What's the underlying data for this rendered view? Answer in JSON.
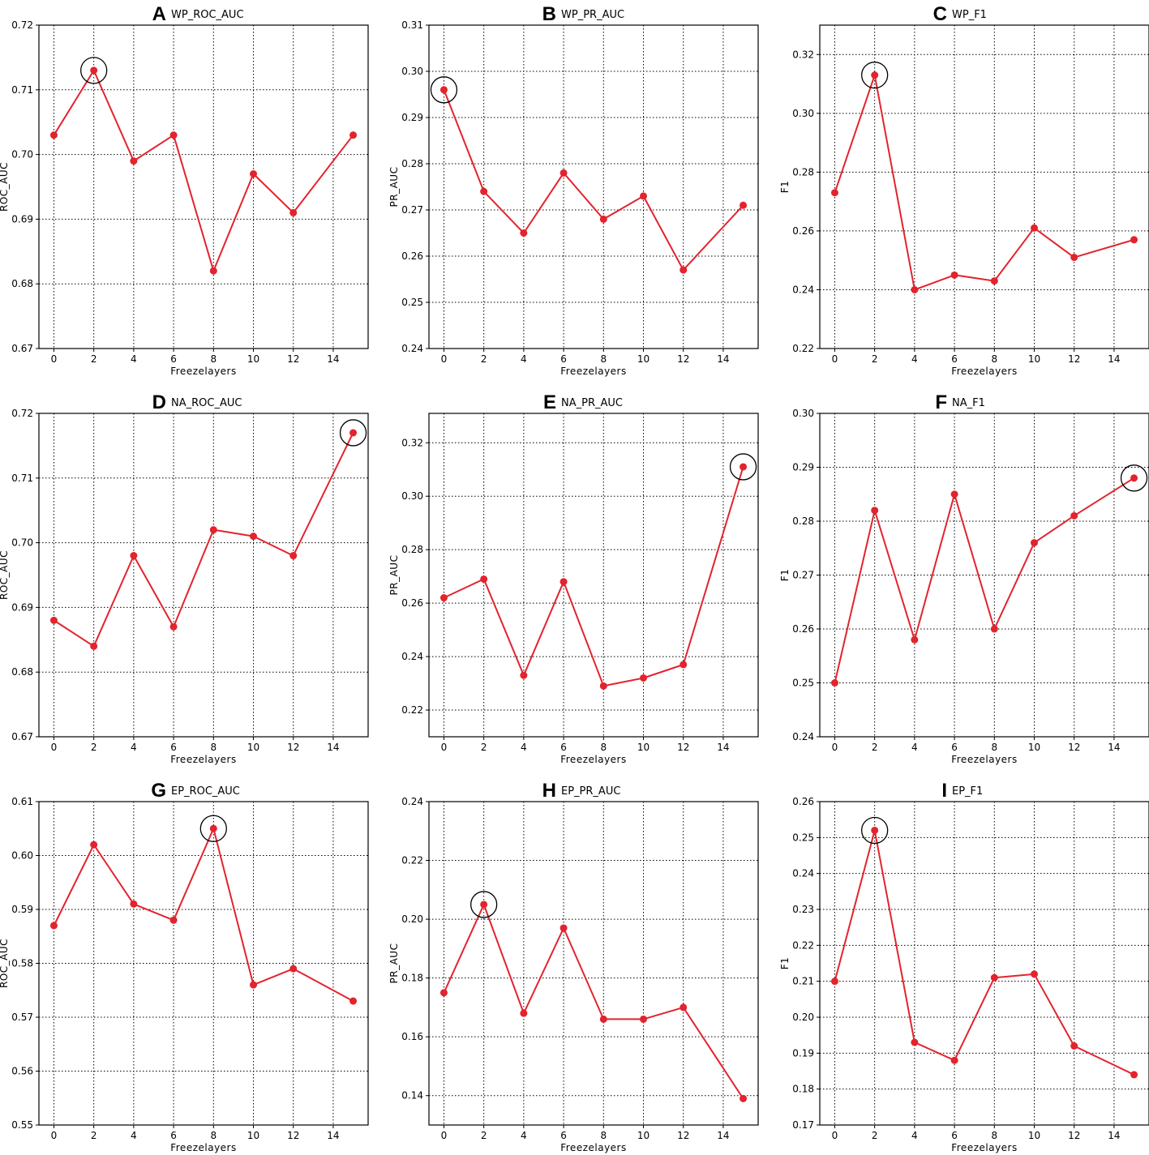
{
  "figure": {
    "line_color": "#e3232d",
    "highlight_color": "#000000",
    "grid": true,
    "grid_style": "dotted"
  },
  "chart_data": [
    {
      "type": "line",
      "letter": "A",
      "title": "WP_ROC_AUC",
      "xlabel": "Freezelayers",
      "ylabel": "ROC_AUC",
      "x": [
        0,
        2,
        4,
        6,
        8,
        10,
        12,
        15
      ],
      "y": [
        0.703,
        0.713,
        0.699,
        0.703,
        0.682,
        0.697,
        0.691,
        0.703
      ],
      "xticks": [
        0,
        2,
        4,
        6,
        8,
        10,
        12,
        14
      ],
      "xtick_labels": [
        "0",
        "2",
        "4",
        "6",
        "8",
        "10",
        "12",
        "14"
      ],
      "yticks": [
        0.67,
        0.68,
        0.69,
        0.7,
        0.71,
        0.72
      ],
      "ytick_labels": [
        "0.67",
        "0.68",
        "0.69",
        "0.70",
        "0.71",
        "0.72"
      ],
      "xlim": [
        -0.75,
        15.75
      ],
      "ylim": [
        0.67,
        0.72
      ],
      "highlight_x": 2
    },
    {
      "type": "line",
      "letter": "B",
      "title": "WP_PR_AUC",
      "xlabel": "Freezelayers",
      "ylabel": "PR_AUC",
      "x": [
        0,
        2,
        4,
        6,
        8,
        10,
        12,
        15
      ],
      "y": [
        0.296,
        0.274,
        0.265,
        0.278,
        0.268,
        0.273,
        0.257,
        0.271
      ],
      "xticks": [
        0,
        2,
        4,
        6,
        8,
        10,
        12,
        14
      ],
      "xtick_labels": [
        "0",
        "2",
        "4",
        "6",
        "8",
        "10",
        "12",
        "14"
      ],
      "yticks": [
        0.24,
        0.25,
        0.26,
        0.27,
        0.28,
        0.29,
        0.3,
        0.31
      ],
      "ytick_labels": [
        "0.24",
        "0.25",
        "0.26",
        "0.27",
        "0.28",
        "0.29",
        "0.30",
        "0.31"
      ],
      "xlim": [
        -0.75,
        15.75
      ],
      "ylim": [
        0.24,
        0.31
      ],
      "highlight_x": 0
    },
    {
      "type": "line",
      "letter": "C",
      "title": "WP_F1",
      "xlabel": "Freezelayers",
      "ylabel": "F1",
      "x": [
        0,
        2,
        4,
        6,
        8,
        10,
        12,
        15
      ],
      "y": [
        0.273,
        0.313,
        0.24,
        0.245,
        0.243,
        0.261,
        0.251,
        0.257
      ],
      "xticks": [
        0,
        2,
        4,
        6,
        8,
        10,
        12,
        14
      ],
      "xtick_labels": [
        "0",
        "2",
        "4",
        "6",
        "8",
        "10",
        "12",
        "14"
      ],
      "yticks": [
        0.22,
        0.24,
        0.26,
        0.28,
        0.3,
        0.32
      ],
      "ytick_labels": [
        "0.22",
        "0.24",
        "0.26",
        "0.28",
        "0.30",
        "0.32"
      ],
      "xlim": [
        -0.75,
        15.75
      ],
      "ylim": [
        0.22,
        0.33
      ],
      "highlight_x": 2
    },
    {
      "type": "line",
      "letter": "D",
      "title": "NA_ROC_AUC",
      "xlabel": "Freezelayers",
      "ylabel": "ROC_AUC",
      "x": [
        0,
        2,
        4,
        6,
        8,
        10,
        12,
        15
      ],
      "y": [
        0.688,
        0.684,
        0.698,
        0.687,
        0.702,
        0.701,
        0.698,
        0.717
      ],
      "xticks": [
        0,
        2,
        4,
        6,
        8,
        10,
        12,
        14
      ],
      "xtick_labels": [
        "0",
        "2",
        "4",
        "6",
        "8",
        "10",
        "12",
        "14"
      ],
      "yticks": [
        0.67,
        0.68,
        0.69,
        0.7,
        0.71,
        0.72
      ],
      "ytick_labels": [
        "0.67",
        "0.68",
        "0.69",
        "0.70",
        "0.71",
        "0.72"
      ],
      "xlim": [
        -0.75,
        15.75
      ],
      "ylim": [
        0.67,
        0.72
      ],
      "highlight_x": 15
    },
    {
      "type": "line",
      "letter": "E",
      "title": "NA_PR_AUC",
      "xlabel": "Freezelayers",
      "ylabel": "PR_AUC",
      "x": [
        0,
        2,
        4,
        6,
        8,
        10,
        12,
        15
      ],
      "y": [
        0.262,
        0.269,
        0.233,
        0.268,
        0.229,
        0.232,
        0.237,
        0.311
      ],
      "xticks": [
        0,
        2,
        4,
        6,
        8,
        10,
        12,
        14
      ],
      "xtick_labels": [
        "0",
        "2",
        "4",
        "6",
        "8",
        "10",
        "12",
        "14"
      ],
      "yticks": [
        0.22,
        0.24,
        0.26,
        0.28,
        0.3,
        0.32
      ],
      "ytick_labels": [
        "0.22",
        "0.24",
        "0.26",
        "0.28",
        "0.30",
        "0.32"
      ],
      "xlim": [
        -0.75,
        15.75
      ],
      "ylim": [
        0.21,
        0.331
      ],
      "highlight_x": 15
    },
    {
      "type": "line",
      "letter": "F",
      "title": "NA_F1",
      "xlabel": "Freezelayers",
      "ylabel": "F1",
      "x": [
        0,
        2,
        4,
        6,
        8,
        10,
        12,
        15
      ],
      "y": [
        0.25,
        0.282,
        0.258,
        0.285,
        0.26,
        0.276,
        0.281,
        0.288
      ],
      "xticks": [
        0,
        2,
        4,
        6,
        8,
        10,
        12,
        14
      ],
      "xtick_labels": [
        "0",
        "2",
        "4",
        "6",
        "8",
        "10",
        "12",
        "14"
      ],
      "yticks": [
        0.24,
        0.25,
        0.26,
        0.27,
        0.28,
        0.29,
        0.3
      ],
      "ytick_labels": [
        "0.24",
        "0.25",
        "0.26",
        "0.27",
        "0.28",
        "0.29",
        "0.30"
      ],
      "xlim": [
        -0.75,
        15.75
      ],
      "ylim": [
        0.24,
        0.3
      ],
      "highlight_x": 15
    },
    {
      "type": "line",
      "letter": "G",
      "title": "EP_ROC_AUC",
      "xlabel": "Freezelayers",
      "ylabel": "ROC_AUC",
      "x": [
        0,
        2,
        4,
        6,
        8,
        10,
        12,
        15
      ],
      "y": [
        0.587,
        0.602,
        0.591,
        0.588,
        0.605,
        0.576,
        0.579,
        0.573
      ],
      "xticks": [
        0,
        2,
        4,
        6,
        8,
        10,
        12,
        14
      ],
      "xtick_labels": [
        "0",
        "2",
        "4",
        "6",
        "8",
        "10",
        "12",
        "14"
      ],
      "yticks": [
        0.55,
        0.56,
        0.57,
        0.58,
        0.59,
        0.6,
        0.61
      ],
      "ytick_labels": [
        "0.55",
        "0.56",
        "0.57",
        "0.58",
        "0.59",
        "0.60",
        "0.61"
      ],
      "xlim": [
        -0.75,
        15.75
      ],
      "ylim": [
        0.55,
        0.61
      ],
      "highlight_x": 8
    },
    {
      "type": "line",
      "letter": "H",
      "title": "EP_PR_AUC",
      "xlabel": "Freezelayers",
      "ylabel": "PR_AUC",
      "x": [
        0,
        2,
        4,
        6,
        8,
        10,
        12,
        15
      ],
      "y": [
        0.175,
        0.205,
        0.168,
        0.197,
        0.166,
        0.166,
        0.17,
        0.139
      ],
      "xticks": [
        0,
        2,
        4,
        6,
        8,
        10,
        12,
        14
      ],
      "xtick_labels": [
        "0",
        "2",
        "4",
        "6",
        "8",
        "10",
        "12",
        "14"
      ],
      "yticks": [
        0.14,
        0.16,
        0.18,
        0.2,
        0.22,
        0.24
      ],
      "ytick_labels": [
        "0.14",
        "0.16",
        "0.18",
        "0.20",
        "0.22",
        "0.24"
      ],
      "xlim": [
        -0.75,
        15.75
      ],
      "ylim": [
        0.13,
        0.24
      ],
      "highlight_x": 2
    },
    {
      "type": "line",
      "letter": "I",
      "title": "EP_F1",
      "xlabel": "Freezelayers",
      "ylabel": "F1",
      "x": [
        0,
        2,
        4,
        6,
        8,
        10,
        12,
        15
      ],
      "y": [
        0.21,
        0.252,
        0.193,
        0.188,
        0.211,
        0.212,
        0.192,
        0.184
      ],
      "xticks": [
        0,
        2,
        4,
        6,
        8,
        10,
        12,
        14
      ],
      "xtick_labels": [
        "0",
        "2",
        "4",
        "6",
        "8",
        "10",
        "12",
        "14"
      ],
      "yticks": [
        0.17,
        0.18,
        0.19,
        0.2,
        0.21,
        0.22,
        0.23,
        0.24,
        0.25,
        0.26
      ],
      "ytick_labels": [
        "0.17",
        "0.18",
        "0.19",
        "0.20",
        "0.21",
        "0.22",
        "0.23",
        "0.24",
        "0.25",
        "0.26"
      ],
      "xlim": [
        -0.75,
        15.75
      ],
      "ylim": [
        0.17,
        0.26
      ],
      "highlight_x": 2
    }
  ]
}
